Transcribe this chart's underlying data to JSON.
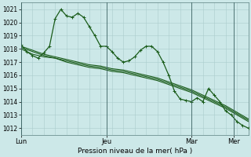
{
  "bg_color": "#cce8e8",
  "grid_color": "#aacccc",
  "line_color": "#1a5c1a",
  "xlabel": "Pression niveau de la mer( hPa )",
  "ylim": [
    1011.5,
    1021.5
  ],
  "yticks": [
    1012,
    1013,
    1014,
    1015,
    1016,
    1017,
    1018,
    1019,
    1020,
    1021
  ],
  "day_labels": [
    "Lun",
    "Jeu",
    "Mar",
    "Mer"
  ],
  "day_vlines": [
    0.0,
    0.375,
    0.75,
    0.9375
  ],
  "xlim": [
    0.0,
    1.0
  ],
  "series1_x": [
    0.0,
    0.025,
    0.05,
    0.075,
    0.1,
    0.125,
    0.15,
    0.175,
    0.2,
    0.225,
    0.25,
    0.275,
    0.3,
    0.325,
    0.35,
    0.375,
    0.4,
    0.425,
    0.45,
    0.475,
    0.5,
    0.525,
    0.55,
    0.575,
    0.6,
    0.625,
    0.65,
    0.675,
    0.7,
    0.725,
    0.75,
    0.775,
    0.8,
    0.825,
    0.85,
    0.875,
    0.9,
    0.925,
    0.95,
    0.975,
    1.0
  ],
  "series1_y": [
    1018.3,
    1017.8,
    1017.5,
    1017.3,
    1017.7,
    1018.2,
    1020.3,
    1021.0,
    1020.5,
    1020.4,
    1020.7,
    1020.4,
    1019.7,
    1019.0,
    1018.2,
    1018.2,
    1017.8,
    1017.3,
    1017.0,
    1017.1,
    1017.4,
    1017.9,
    1018.2,
    1018.2,
    1017.8,
    1017.0,
    1016.0,
    1014.8,
    1014.2,
    1014.1,
    1014.0,
    1014.3,
    1014.0,
    1015.0,
    1014.5,
    1014.0,
    1013.3,
    1013.0,
    1012.5,
    1012.2,
    1012.0
  ],
  "series2_x": [
    0.0,
    0.05,
    0.1,
    0.15,
    0.2,
    0.25,
    0.3,
    0.35,
    0.4,
    0.45,
    0.5,
    0.55,
    0.6,
    0.65,
    0.7,
    0.75,
    0.8,
    0.85,
    0.9,
    0.95,
    1.0
  ],
  "series2_y": [
    1018.0,
    1017.6,
    1017.4,
    1017.3,
    1017.0,
    1016.8,
    1016.6,
    1016.5,
    1016.3,
    1016.2,
    1016.0,
    1015.8,
    1015.6,
    1015.3,
    1015.0,
    1014.7,
    1014.3,
    1013.9,
    1013.5,
    1013.0,
    1012.5
  ],
  "series3_x": [
    0.0,
    0.05,
    0.1,
    0.15,
    0.2,
    0.25,
    0.3,
    0.35,
    0.4,
    0.45,
    0.5,
    0.55,
    0.6,
    0.65,
    0.7,
    0.75,
    0.8,
    0.85,
    0.9,
    0.95,
    1.0
  ],
  "series3_y": [
    1018.1,
    1017.8,
    1017.5,
    1017.3,
    1017.1,
    1016.9,
    1016.7,
    1016.6,
    1016.4,
    1016.3,
    1016.1,
    1015.9,
    1015.7,
    1015.4,
    1015.1,
    1014.8,
    1014.4,
    1014.0,
    1013.6,
    1013.1,
    1012.6
  ],
  "series4_x": [
    0.0,
    0.05,
    0.1,
    0.15,
    0.2,
    0.25,
    0.3,
    0.35,
    0.4,
    0.45,
    0.5,
    0.55,
    0.6,
    0.65,
    0.7,
    0.75,
    0.8,
    0.85,
    0.9,
    0.95,
    1.0
  ],
  "series4_y": [
    1018.2,
    1017.9,
    1017.6,
    1017.4,
    1017.2,
    1017.0,
    1016.8,
    1016.7,
    1016.5,
    1016.4,
    1016.2,
    1016.0,
    1015.8,
    1015.5,
    1015.2,
    1014.9,
    1014.5,
    1014.1,
    1013.7,
    1013.2,
    1012.7
  ]
}
